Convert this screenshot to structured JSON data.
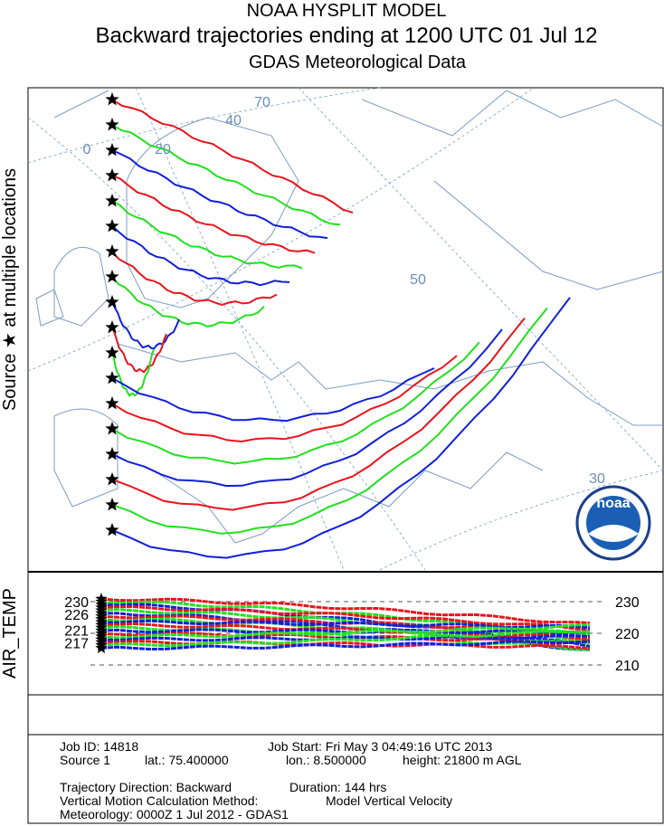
{
  "header": {
    "title": "NOAA HYSPLIT MODEL",
    "subtitle": "Backward trajectories ending at 1200 UTC 01 Jul 12",
    "data_source": "GDAS Meteorological Data"
  },
  "map": {
    "side_label": "Source ★ at multiple locations",
    "grid_labels": [
      "0",
      "20",
      "40",
      "70",
      "50",
      "30"
    ],
    "logo": "noaa"
  },
  "profile": {
    "variable": "AIR_TEMP",
    "start_labels": [
      230,
      226,
      221,
      217
    ],
    "axis_ticks": [
      230,
      220,
      210
    ]
  },
  "footer": {
    "job_id": "Job ID: 14818",
    "job_start": "Job Start: Fri May  3 04:49:16 UTC 2013",
    "source": "Source 1",
    "lat": "lat.: 75.400000",
    "lon": "lon.: 8.500000",
    "height": "height: 21800 m AGL",
    "direction": "Trajectory Direction: Backward",
    "duration": "Duration: 144 hrs",
    "vertical_method": "Vertical Motion Calculation Method:",
    "vertical_value": "Model Vertical Velocity",
    "meteorology": "Meteorology: 0000Z  1 Jul 2012 - GDAS1"
  }
}
